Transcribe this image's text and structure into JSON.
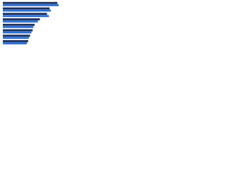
{
  "chart_data": {
    "type": "hbar",
    "categories": [
      null,
      null,
      null,
      null,
      null,
      null,
      null,
      null
    ],
    "series": [
      {
        "color": "#1b2f5c",
        "values": [
          84,
          72,
          68,
          57,
          49,
          46,
          42,
          39
        ]
      },
      {
        "color": "#2d6fd2",
        "values": [
          86,
          74,
          71,
          54,
          47,
          44,
          40,
          37
        ]
      }
    ],
    "xlim": [
      0,
      100
    ]
  }
}
